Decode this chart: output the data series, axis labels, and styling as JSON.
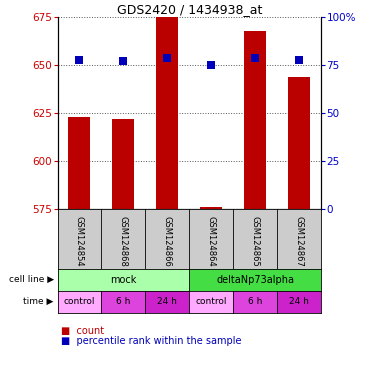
{
  "title": "GDS2420 / 1434938_at",
  "samples": [
    "GSM124854",
    "GSM124868",
    "GSM124866",
    "GSM124864",
    "GSM124865",
    "GSM124867"
  ],
  "counts": [
    623,
    622,
    675,
    576,
    668,
    644
  ],
  "percentile_ranks": [
    78,
    77,
    79,
    75,
    79,
    78
  ],
  "ylim_left": [
    575,
    675
  ],
  "ylim_right": [
    0,
    100
  ],
  "yticks_left": [
    575,
    600,
    625,
    650,
    675
  ],
  "yticks_right": [
    0,
    25,
    50,
    75,
    100
  ],
  "ytick_labels_right": [
    "0",
    "25",
    "50",
    "75",
    "100%"
  ],
  "bar_color": "#bb0000",
  "dot_color": "#0000bb",
  "bar_bottom": 575,
  "cell_line_groups": [
    {
      "label": "mock",
      "start": 0,
      "end": 3,
      "color": "#aaffaa"
    },
    {
      "label": "deltaNp73alpha",
      "start": 3,
      "end": 6,
      "color": "#44dd44"
    }
  ],
  "time_colors": [
    "#ffaaff",
    "#dd44dd",
    "#cc22cc",
    "#ffaaff",
    "#dd44dd",
    "#cc22cc"
  ],
  "time_labels": [
    "control",
    "6 h",
    "24 h",
    "control",
    "6 h",
    "24 h"
  ],
  "sample_box_color": "#cccccc",
  "grid_color": "#555555",
  "left_tick_color": "#cc0000",
  "right_tick_color": "#0000cc",
  "background_color": "#ffffff",
  "dot_size": 30,
  "bar_width": 0.5,
  "n": 6
}
